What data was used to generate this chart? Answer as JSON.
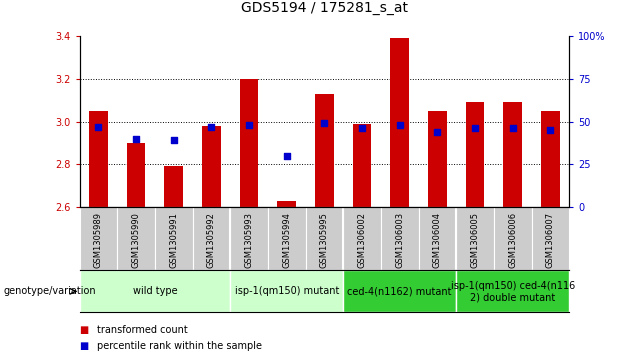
{
  "title": "GDS5194 / 175281_s_at",
  "samples": [
    "GSM1305989",
    "GSM1305990",
    "GSM1305991",
    "GSM1305992",
    "GSM1305993",
    "GSM1305994",
    "GSM1305995",
    "GSM1306002",
    "GSM1306003",
    "GSM1306004",
    "GSM1306005",
    "GSM1306006",
    "GSM1306007"
  ],
  "transformed_count": [
    3.05,
    2.9,
    2.79,
    2.98,
    3.2,
    2.63,
    3.13,
    2.99,
    3.39,
    3.05,
    3.09,
    3.09,
    3.05
  ],
  "percentile_rank": [
    47,
    40,
    39,
    47,
    48,
    30,
    49,
    46,
    48,
    44,
    46,
    46,
    45
  ],
  "ylim": [
    2.6,
    3.4
  ],
  "right_ylim": [
    0,
    100
  ],
  "right_yticks": [
    0,
    25,
    50,
    75,
    100
  ],
  "right_yticklabels": [
    "0",
    "25",
    "50",
    "75",
    "100%"
  ],
  "yticks": [
    2.6,
    2.8,
    3.0,
    3.2,
    3.4
  ],
  "bar_color": "#cc0000",
  "percentile_color": "#0000cc",
  "groups": [
    {
      "label": "wild type",
      "indices": [
        0,
        1,
        2,
        3
      ],
      "color": "#ccffcc"
    },
    {
      "label": "isp-1(qm150) mutant",
      "indices": [
        4,
        5,
        6
      ],
      "color": "#ccffcc"
    },
    {
      "label": "ced-4(n1162) mutant",
      "indices": [
        7,
        8,
        9
      ],
      "color": "#33cc33"
    },
    {
      "label": "isp-1(qm150) ced-4(n116\n2) double mutant",
      "indices": [
        10,
        11,
        12
      ],
      "color": "#33cc33"
    }
  ],
  "group_borders": [
    3.5,
    6.5,
    9.5
  ],
  "legend_items": [
    {
      "label": "transformed count",
      "color": "#cc0000"
    },
    {
      "label": "percentile rank within the sample",
      "color": "#0000cc"
    }
  ],
  "bar_bottom": 2.6,
  "header_bg": "#cccccc",
  "tick_label_fontsize": 6.0,
  "group_label_fontsize": 7.0,
  "title_fontsize": 10,
  "genotype_label": "genotype/variation"
}
